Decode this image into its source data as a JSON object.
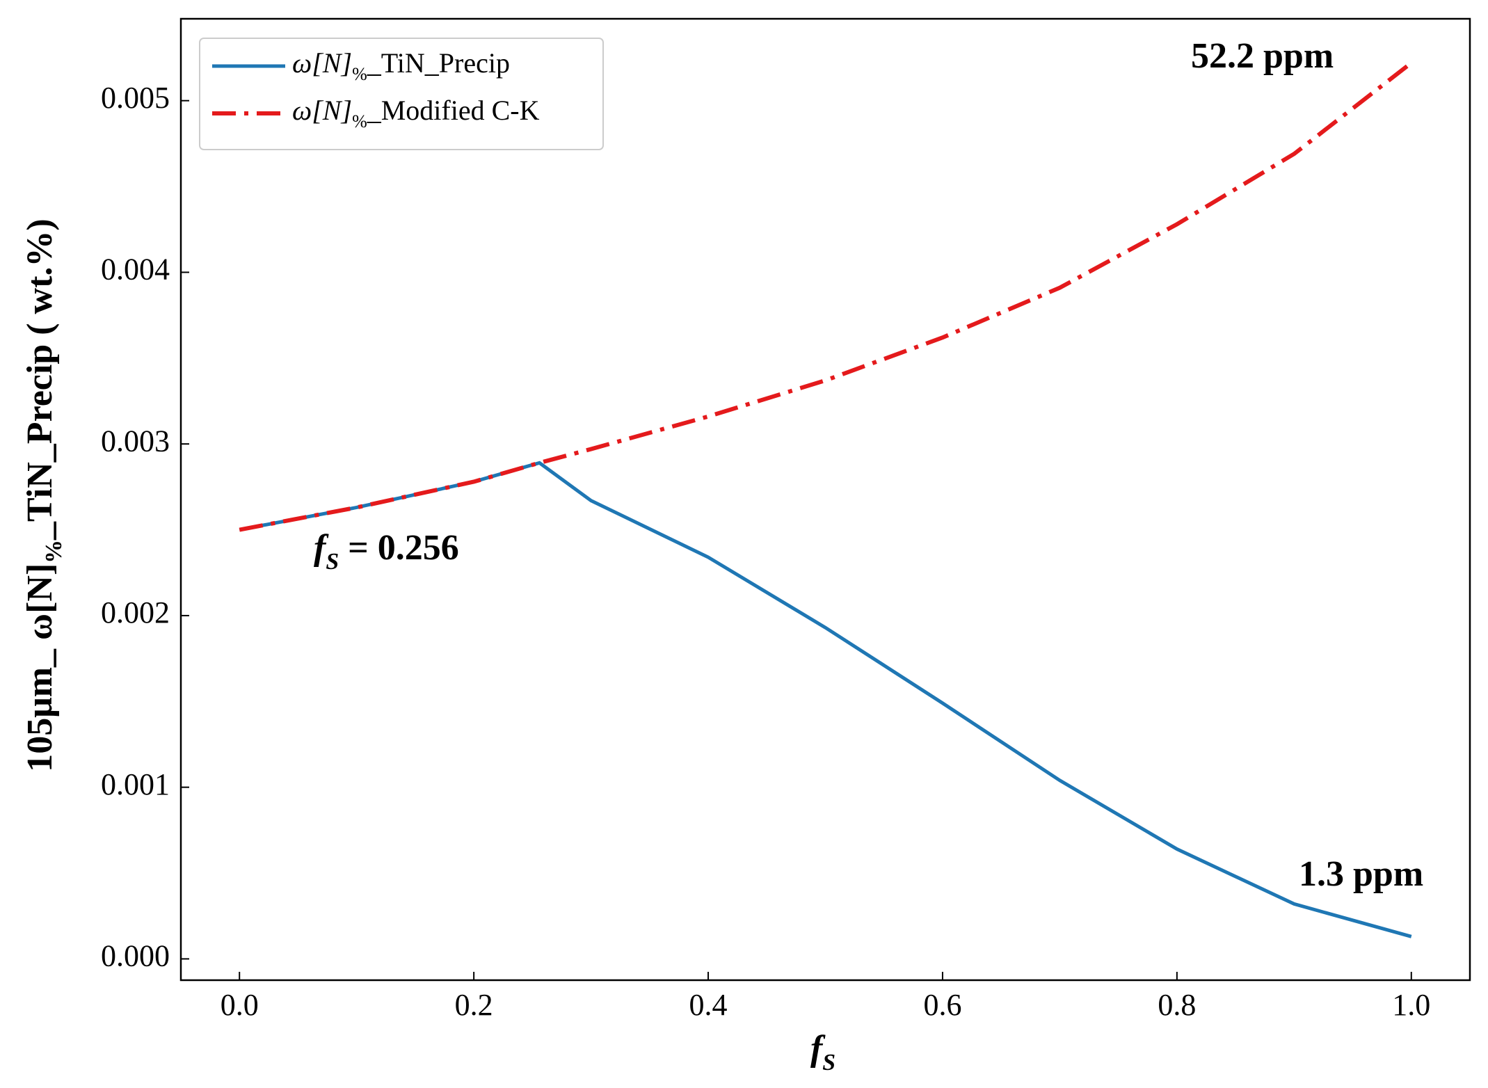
{
  "chart_data": {
    "type": "line",
    "x": [
      0,
      0.1,
      0.2,
      0.256,
      0.3,
      0.4,
      0.5,
      0.6,
      0.7,
      0.8,
      0.9,
      1.0
    ],
    "series": [
      {
        "name": "ω[N]%_TiN_Precip",
        "color": "#1f77b4",
        "dash": "solid",
        "values": [
          0.0025,
          0.00263,
          0.00278,
          0.00289,
          0.00267,
          0.00234,
          0.00193,
          0.00149,
          0.00104,
          0.00064,
          0.00032,
          0.00013
        ]
      },
      {
        "name": "ω[N]%_Modified C-K",
        "color": "#e41a1c",
        "dash": "dashdot",
        "values": [
          0.0025,
          0.00263,
          0.00278,
          0.00289,
          0.00297,
          0.00316,
          0.00337,
          0.00362,
          0.00391,
          0.00428,
          0.00469,
          0.00522
        ]
      }
    ],
    "xlabel": "fS",
    "ylabel": "105μm_ ω[N]%_TiN_Precip ( wt.%)",
    "xlim": [
      -0.05,
      1.05
    ],
    "ylim": [
      -0.000124,
      0.005477
    ],
    "xticks": [
      {
        "value": 0,
        "label": "0.0"
      },
      {
        "value": 0.2,
        "label": "0.2"
      },
      {
        "value": 0.4,
        "label": "0.4"
      },
      {
        "value": 0.6,
        "label": "0.6"
      },
      {
        "value": 0.8,
        "label": "0.8"
      },
      {
        "value": 1.0,
        "label": "1.0"
      }
    ],
    "yticks": [
      {
        "value": 0,
        "label": "0.000"
      },
      {
        "value": 0.001,
        "label": "0.001"
      },
      {
        "value": 0.002,
        "label": "0.002"
      },
      {
        "value": 0.003,
        "label": "0.003"
      },
      {
        "value": 0.004,
        "label": "0.004"
      },
      {
        "value": 0.005,
        "label": "0.005"
      }
    ],
    "annotations": [
      "52.2 ppm",
      "1.3 ppm",
      "fS = 0.256"
    ],
    "legend": "upper left",
    "grid": false
  }
}
